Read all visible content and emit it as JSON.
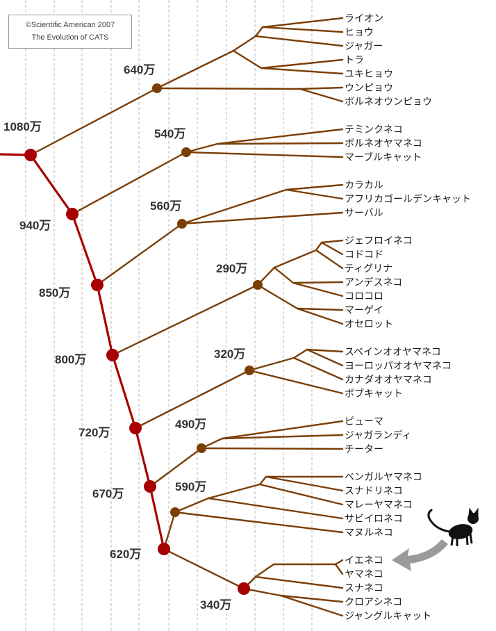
{
  "credit": {
    "copyright": "©Scientific American 2007",
    "title": "The Evolution of CATS"
  },
  "colors": {
    "spine": "#a80000",
    "branch": "#7b3e05",
    "arrow": "#9a9a9a",
    "cat": "#111111",
    "grid": "#b8b8b8"
  },
  "icons": [
    "black-cat-silhouette-icon",
    "curved-arrow-icon"
  ],
  "spine_nodes": [
    {
      "id": "s1080",
      "label": "1080万"
    },
    {
      "id": "s940",
      "label": "940万"
    },
    {
      "id": "s850",
      "label": "850万"
    },
    {
      "id": "s800",
      "label": "800万"
    },
    {
      "id": "s720",
      "label": "720万"
    },
    {
      "id": "s670",
      "label": "670万"
    },
    {
      "id": "s620",
      "label": "620万"
    }
  ],
  "lineages": [
    {
      "id": "panthera",
      "node_label": "640万",
      "species": [
        "ライオン",
        "ヒョウ",
        "ジャガー",
        "トラ",
        "ユキヒョウ",
        "ウンピョウ",
        "ボルネオウンピョウ"
      ]
    },
    {
      "id": "bay-cat",
      "node_label": "540万",
      "species": [
        "テミンクネコ",
        "ボルネオヤマネコ",
        "マーブルキャット"
      ]
    },
    {
      "id": "caracal",
      "node_label": "560万",
      "species": [
        "カラカル",
        "アフリカゴールデンキャット",
        "サーバル"
      ]
    },
    {
      "id": "ocelot",
      "node_label": "290万",
      "species": [
        "ジェフロイネコ",
        "コドコド",
        "ティグリナ",
        "アンデスネコ",
        "コロコロ",
        "マーゲイ",
        "オセロット"
      ]
    },
    {
      "id": "lynx",
      "node_label": "320万",
      "species": [
        "スペインオオヤマネコ",
        "ヨーロッパオオヤマネコ",
        "カナダオオヤマネコ",
        "ボブキャット"
      ]
    },
    {
      "id": "puma",
      "node_label": "490万",
      "species": [
        "ピューマ",
        "ジャガランディ",
        "チーター"
      ]
    },
    {
      "id": "leopard-cat",
      "node_label": "590万",
      "species": [
        "ベンガルヤマネコ",
        "スナドリネコ",
        "マレーヤマネコ",
        "サビイロネコ",
        "マヌルネコ"
      ]
    },
    {
      "id": "domestic-cat",
      "node_label": "340万",
      "species": [
        "イエネコ",
        "ヤマネコ",
        "スナネコ",
        "クロアシネコ",
        "ジャングルキャット"
      ]
    }
  ]
}
